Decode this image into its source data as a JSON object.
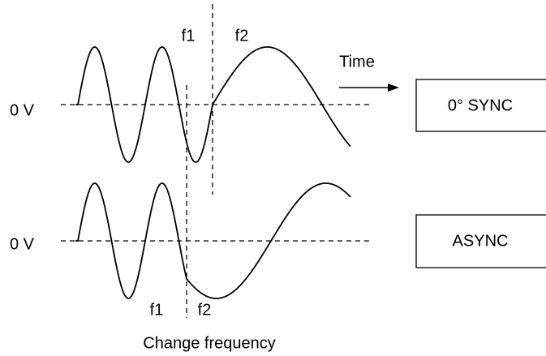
{
  "top": {
    "phase_labels": [
      "f1",
      "f2"
    ],
    "zero_label": "0 V",
    "mode": "0° SYNC"
  },
  "time_label": "Time",
  "bottom": {
    "phase_labels": [
      "f1",
      "f2"
    ],
    "zero_label": "0 V",
    "mode": "ASYNC"
  },
  "caption": "Change frequency"
}
